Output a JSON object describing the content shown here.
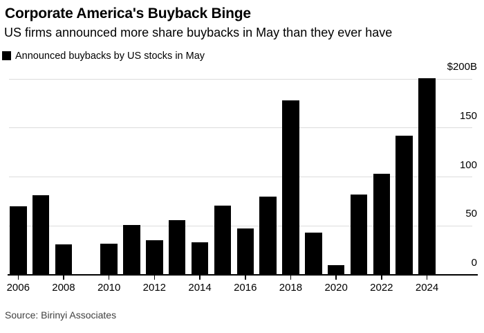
{
  "header": {
    "title": "Corporate America's Buyback Binge",
    "subtitle": "US firms announced more share buybacks in May than they ever have"
  },
  "legend": {
    "label": "Announced buybacks by US stocks in May",
    "swatch_color": "#000000"
  },
  "source": "Source: Birinyi Associates",
  "chart_data": {
    "type": "bar",
    "title": "Announced buybacks by US stocks in May",
    "categories": [
      "2006",
      "2007",
      "2008",
      "2009",
      "2010",
      "2011",
      "2012",
      "2013",
      "2014",
      "2015",
      "2016",
      "2017",
      "2018",
      "2019",
      "2020",
      "2021",
      "2022",
      "2023",
      "2024"
    ],
    "values": [
      70,
      81,
      31,
      1,
      32,
      51,
      35,
      56,
      33,
      71,
      47,
      80,
      178,
      43,
      10,
      82,
      103,
      142,
      201
    ],
    "unit": "billions USD",
    "ylabel": "",
    "xlabel": "",
    "ylim": [
      0,
      210
    ],
    "y_ticks": [
      0,
      50,
      100,
      150,
      200
    ],
    "y_tick_labels": [
      "0",
      "50",
      "100",
      "150",
      "$200B"
    ],
    "x_tick_labels": [
      "2006",
      "2008",
      "2010",
      "2012",
      "2014",
      "2016",
      "2018",
      "2020",
      "2022",
      "2024"
    ],
    "grid": true,
    "legend_position": "top-left",
    "axis_label_side": "right",
    "bar_color": "#000000",
    "grid_color": "#dcdcdc",
    "axis_color": "#000000"
  }
}
